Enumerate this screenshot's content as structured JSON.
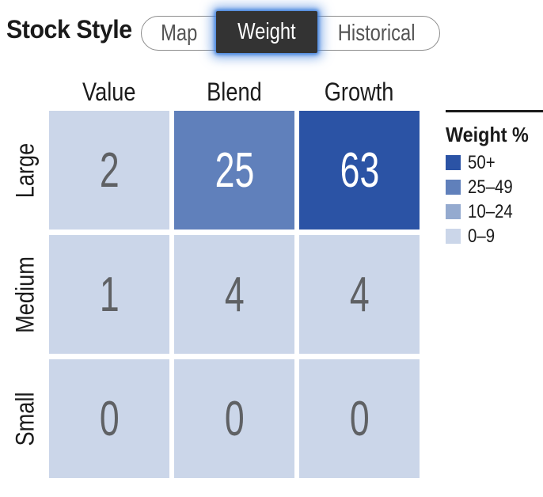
{
  "header": {
    "title": "Stock Style",
    "tabs": [
      {
        "label": "Map",
        "selected": false
      },
      {
        "label": "Weight",
        "selected": true
      },
      {
        "label": "Historical",
        "selected": false
      }
    ]
  },
  "grid": {
    "col_headers": [
      "Value",
      "Blend",
      "Growth"
    ],
    "row_labels": [
      "Large",
      "Medium",
      "Small"
    ],
    "cells": [
      [
        {
          "value": "2",
          "tier": "0–9",
          "color": "#cbd6e9",
          "text_color": "#5f6164"
        },
        {
          "value": "25",
          "tier": "25–49",
          "color": "#6080bb",
          "text_color": "#ffffff"
        },
        {
          "value": "63",
          "tier": "50+",
          "color": "#2b53a5",
          "text_color": "#ffffff"
        }
      ],
      [
        {
          "value": "1",
          "tier": "0–9",
          "color": "#cbd6e9",
          "text_color": "#5f6164"
        },
        {
          "value": "4",
          "tier": "0–9",
          "color": "#cbd6e9",
          "text_color": "#5f6164"
        },
        {
          "value": "4",
          "tier": "0–9",
          "color": "#cbd6e9",
          "text_color": "#5f6164"
        }
      ],
      [
        {
          "value": "0",
          "tier": "0–9",
          "color": "#cbd6e9",
          "text_color": "#5f6164"
        },
        {
          "value": "0",
          "tier": "0–9",
          "color": "#cbd6e9",
          "text_color": "#5f6164"
        },
        {
          "value": "0",
          "tier": "0–9",
          "color": "#cbd6e9",
          "text_color": "#5f6164"
        }
      ]
    ]
  },
  "legend": {
    "title": "Weight %",
    "items": [
      {
        "label": "50+",
        "color": "#2b53a5"
      },
      {
        "label": "25–49",
        "color": "#6080bb"
      },
      {
        "label": "10–24",
        "color": "#94aacf"
      },
      {
        "label": "0–9",
        "color": "#cbd6e9"
      }
    ]
  },
  "colors": {
    "selected_tab_bg": "#333333",
    "selected_tab_text": "#ffffff",
    "selected_tab_glow": "#3e7fdc",
    "pill_border": "#8c8c8c",
    "cell_text_gray": "#5f6164",
    "title_text": "#1a1a1a"
  },
  "chart_data": {
    "type": "heatmap",
    "title": "Stock Style",
    "active_view": "Weight",
    "columns": [
      "Value",
      "Blend",
      "Growth"
    ],
    "rows": [
      "Large",
      "Medium",
      "Small"
    ],
    "values": [
      [
        2,
        25,
        63
      ],
      [
        1,
        4,
        4
      ],
      [
        0,
        0,
        0
      ]
    ],
    "legend": {
      "title": "Weight %",
      "position": "right",
      "bins": [
        {
          "label": "50+",
          "min": 50,
          "color": "#2b53a5"
        },
        {
          "label": "25–49",
          "min": 25,
          "color": "#6080bb"
        },
        {
          "label": "10–24",
          "min": 10,
          "color": "#94aacf"
        },
        {
          "label": "0–9",
          "min": 0,
          "color": "#cbd6e9"
        }
      ]
    }
  }
}
